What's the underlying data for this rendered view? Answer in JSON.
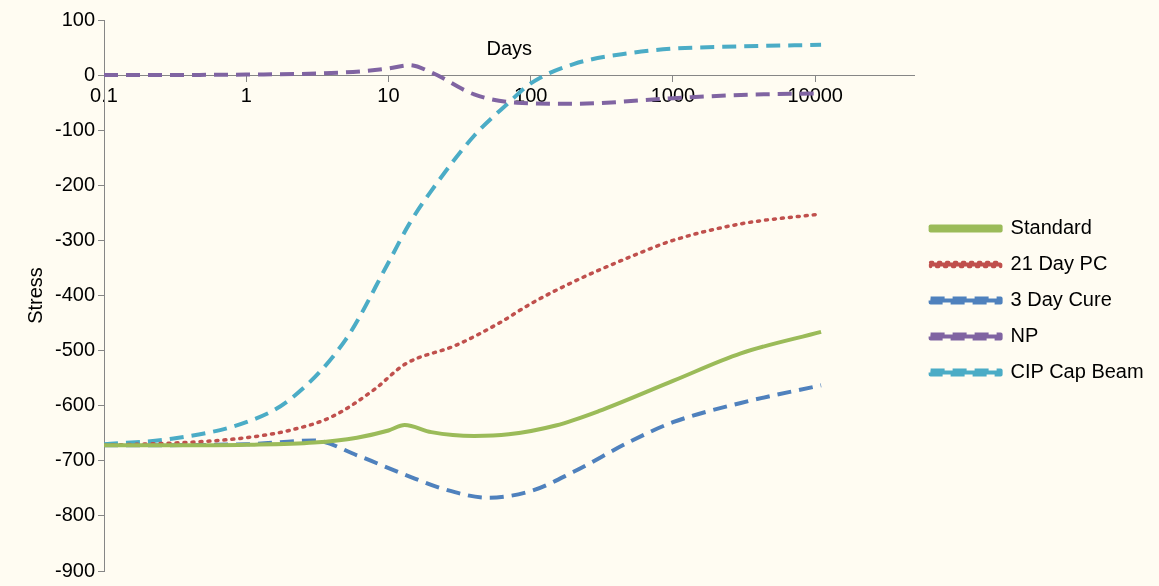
{
  "chart_data": {
    "type": "line",
    "xlabel": "Days",
    "ylabel": "Stress",
    "log": "x",
    "xlim": [
      0.1,
      50000
    ],
    "xticks": [
      0.1,
      1,
      10,
      100,
      1000,
      10000
    ],
    "ylim": [
      -900,
      100
    ],
    "yticks": [
      100,
      0,
      -100,
      -200,
      -300,
      -400,
      -500,
      -600,
      -700,
      -800,
      -900
    ],
    "grid": false,
    "legend": "right",
    "marker": "none",
    "series": [
      {
        "name": "Standard",
        "color": "#9bbb59",
        "line_style": "solid",
        "x": [
          0.1,
          0.3,
          1,
          3,
          6,
          10,
          13,
          20,
          40,
          70,
          150,
          300,
          1000,
          3000,
          11000
        ],
        "values": [
          -672,
          -672,
          -671,
          -667,
          -658,
          -645,
          -635,
          -648,
          -655,
          -652,
          -636,
          -610,
          -555,
          -505,
          -466
        ]
      },
      {
        "name": "21 Day PC",
        "color": "#c0504d",
        "line_style": "dotted",
        "x": [
          0.1,
          0.5,
          1,
          2,
          4,
          8,
          13,
          30,
          60,
          100,
          200,
          500,
          1000,
          3000,
          11000
        ],
        "values": [
          -672,
          -665,
          -658,
          -645,
          -620,
          -570,
          -525,
          -490,
          -450,
          -415,
          -375,
          -330,
          -300,
          -270,
          -252
        ]
      },
      {
        "name": "3 Day Cure",
        "color": "#4f81bd",
        "line_style": "dashed",
        "x": [
          0.1,
          1,
          3,
          6,
          13,
          25,
          50,
          100,
          200,
          500,
          1000,
          3000,
          11000
        ],
        "values": [
          -672,
          -670,
          -663,
          -690,
          -725,
          -752,
          -767,
          -755,
          -720,
          -665,
          -630,
          -595,
          -563
        ]
      },
      {
        "name": "NP",
        "color": "#8064a2",
        "line_style": "dashed",
        "x": [
          0.1,
          1,
          5,
          10,
          14,
          20,
          40,
          80,
          200,
          1000,
          3000,
          11000
        ],
        "values": [
          0,
          1,
          5,
          12,
          18,
          5,
          -35,
          -50,
          -52,
          -42,
          -36,
          -33
        ]
      },
      {
        "name": "CIP Cap Beam",
        "color": "#4bacc6",
        "line_style": "dashed",
        "x": [
          0.1,
          0.3,
          1,
          2,
          5,
          10,
          14,
          20,
          40,
          70,
          100,
          200,
          500,
          1000,
          3000,
          11000
        ],
        "values": [
          -670,
          -660,
          -630,
          -590,
          -480,
          -340,
          -270,
          -210,
          -110,
          -50,
          -15,
          20,
          40,
          48,
          52,
          55
        ]
      }
    ]
  }
}
